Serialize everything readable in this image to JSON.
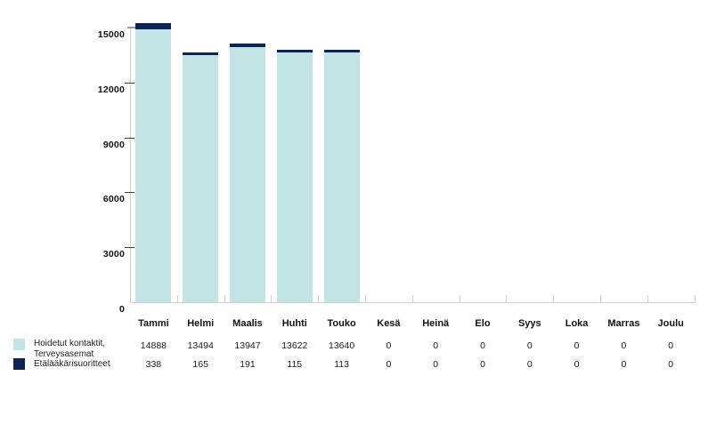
{
  "chart_data": {
    "type": "bar",
    "stacked": true,
    "title": "",
    "xlabel": "",
    "ylabel": "",
    "grid": false,
    "legend_position": "bottom-left",
    "categories": [
      "Tammi",
      "Helmi",
      "Maalis",
      "Huhti",
      "Touko",
      "Kesä",
      "Heinä",
      "Elo",
      "Syys",
      "Loka",
      "Marras",
      "Joulu"
    ],
    "series": [
      {
        "name": "Hoidetut kontaktit, Terveysasemat",
        "name_lines": [
          "Hoidetut kontaktit,",
          "Terveysasemat"
        ],
        "color": "#c3e4e5",
        "values": [
          14888,
          13494,
          13947,
          13622,
          13640,
          0,
          0,
          0,
          0,
          0,
          0,
          0
        ]
      },
      {
        "name": "Etälääkärisuoritteet",
        "name_lines": [
          "Etälääkärisuoritteet"
        ],
        "color": "#0e2356",
        "values": [
          338,
          165,
          191,
          115,
          113,
          0,
          0,
          0,
          0,
          0,
          0,
          0
        ]
      }
    ],
    "ylim": [
      0,
      15000
    ],
    "yticks": [
      0,
      3000,
      6000,
      9000,
      12000,
      15000
    ]
  },
  "colors": {
    "series1": "#c3e4e5",
    "series2": "#0e2356",
    "axis_line": "#cfcfcf",
    "tick_dark": "#3d3d3d",
    "top_cap": "#9a9a9a",
    "text": "#111111",
    "background": "#ffffff"
  }
}
